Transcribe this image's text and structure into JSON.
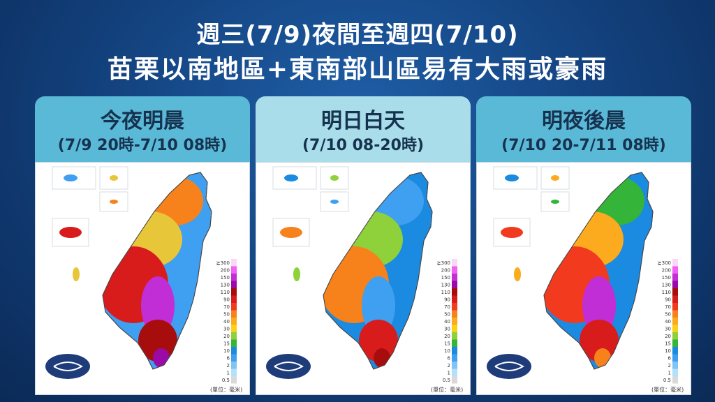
{
  "title": {
    "line1": "週三(7/9)夜間至週四(7/10)",
    "line2": "苗栗以南地區+東南部山區易有大雨或豪雨"
  },
  "panels": [
    {
      "title": "今夜明晨",
      "subtitle": "(7/9 20時-7/10 08時)"
    },
    {
      "title": "明日白天",
      "subtitle": "(7/10 08-20時)"
    },
    {
      "title": "明夜後晨",
      "subtitle": "(7/10 20-7/11 08時)"
    }
  ],
  "legend": {
    "unit": "(單位：毫米)",
    "levels": [
      "≧300",
      "200",
      "150",
      "130",
      "110",
      "90",
      "70",
      "50",
      "40",
      "30",
      "20",
      "15",
      "10",
      "6",
      "2",
      "1",
      "0.5"
    ],
    "colors": [
      "#fbd7f7",
      "#f25ff5",
      "#c12ed6",
      "#9a0aa6",
      "#a80d0d",
      "#d81c1c",
      "#f23b1e",
      "#f7821c",
      "#fbab1d",
      "#fbd11a",
      "#8fd13a",
      "#35b43a",
      "#1a8be0",
      "#3f9ff0",
      "#80c4f5",
      "#b3e1fb",
      "#d9d9d9"
    ]
  },
  "map_colors": {
    "p1": {
      "north": "#f7821c",
      "northwest": "#e8c63a",
      "west": "#d81c1c",
      "center": "#c12ed6",
      "east": "#3f9ff0",
      "south": "#a80d0d",
      "tip": "#9a0aa6"
    },
    "p2": {
      "north": "#3f9ff0",
      "northwest": "#8fd13a",
      "west": "#f7821c",
      "center": "#3f9ff0",
      "east": "#1a8be0",
      "south": "#d81c1c",
      "tip": "#a80d0d"
    },
    "p3": {
      "north": "#35b43a",
      "northwest": "#fbab1d",
      "west": "#f23b1e",
      "center": "#c12ed6",
      "east": "#1a8be0",
      "south": "#d81c1c",
      "tip": "#f7821c"
    }
  }
}
